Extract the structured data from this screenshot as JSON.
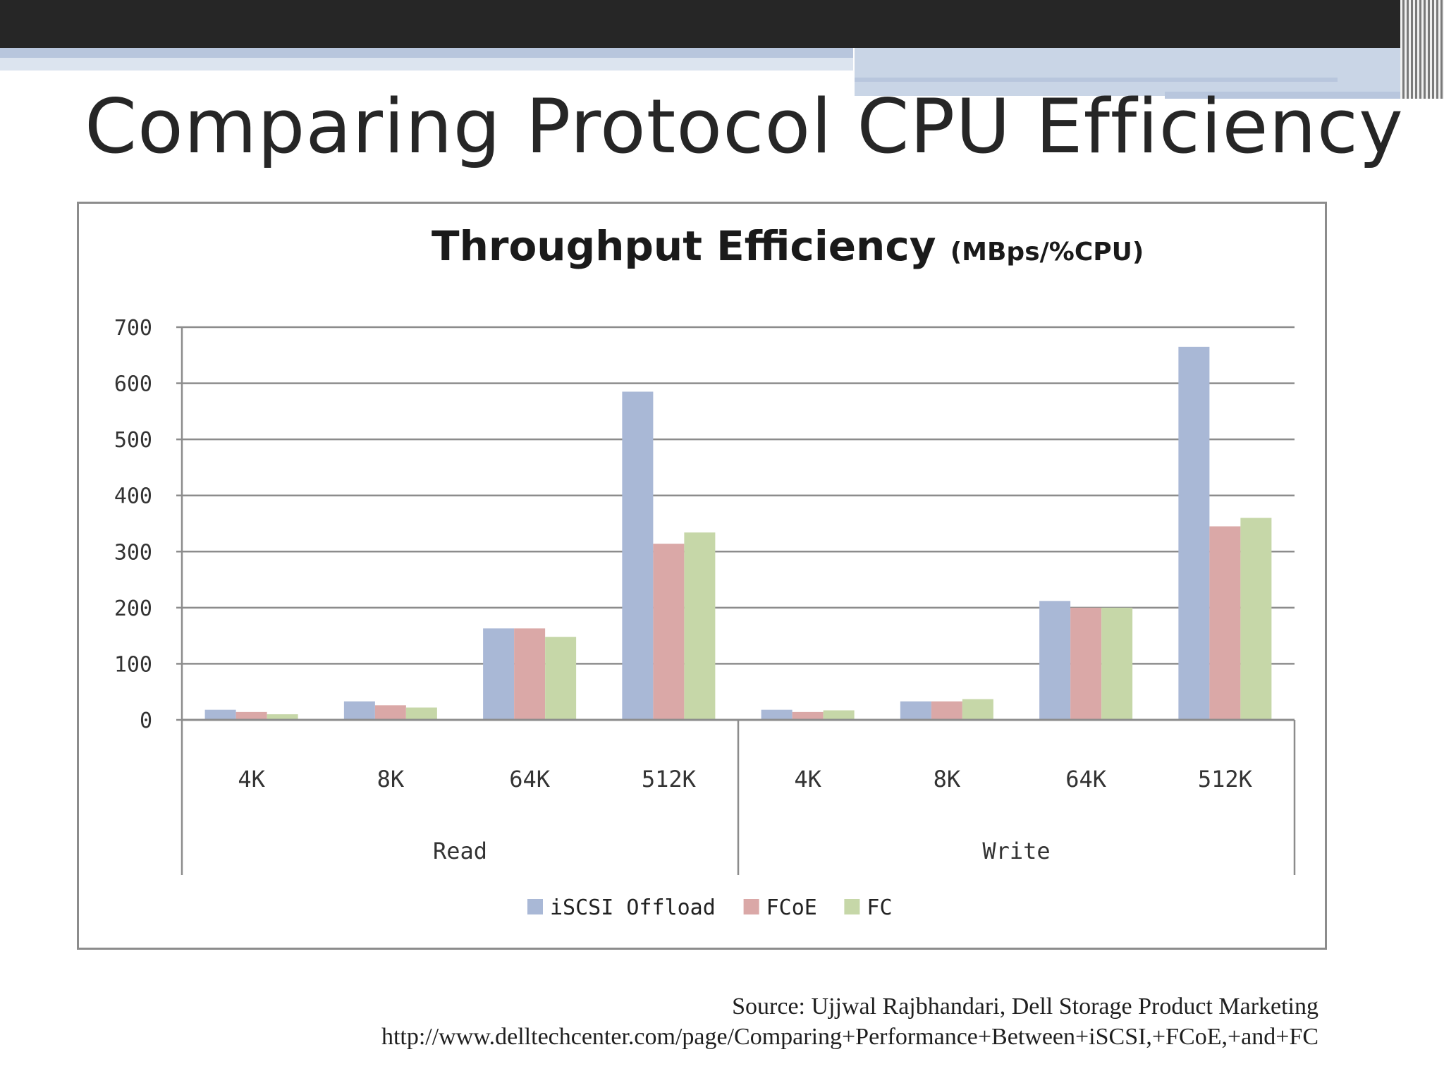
{
  "slide": {
    "title": "Comparing Protocol CPU Efficiency",
    "source_line1": "Source: Ujjwal Rajbhandari, Dell Storage Product Marketing",
    "source_line2": "http://www.delltechcenter.com/page/Comparing+Performance+Between+iSCSI,+FCoE,+and+FC"
  },
  "colors": {
    "top_bar": "#262626",
    "accent_stripe": "#b8c6dd",
    "grid": "#8c8c8c",
    "iscsi": "#a9b8d6",
    "fcoe": "#daa8a7",
    "fc": "#c6d7a8"
  },
  "chart_data": {
    "type": "bar",
    "title": "Throughput Efficiency",
    "title_suffix": "(MBps/%CPU)",
    "ylim": [
      0,
      700
    ],
    "yticks": [
      "0",
      "100",
      "200",
      "300",
      "400",
      "500",
      "600",
      "700"
    ],
    "categories": [
      "4K",
      "8K",
      "64K",
      "512K",
      "4K",
      "8K",
      "64K",
      "512K"
    ],
    "groups": [
      {
        "label": "Read",
        "categories": [
          "4K",
          "8K",
          "64K",
          "512K"
        ]
      },
      {
        "label": "Write",
        "categories": [
          "4K",
          "8K",
          "64K",
          "512K"
        ]
      }
    ],
    "series": [
      {
        "name": "iSCSI Offload",
        "color": "#a9b8d6",
        "values": [
          18,
          33,
          163,
          585,
          18,
          33,
          212,
          665
        ]
      },
      {
        "name": "FCoE",
        "color": "#daa8a7",
        "values": [
          14,
          26,
          163,
          314,
          14,
          33,
          200,
          345
        ]
      },
      {
        "name": "FC",
        "color": "#c6d7a8",
        "values": [
          10,
          22,
          148,
          334,
          17,
          37,
          200,
          360
        ]
      }
    ],
    "grid": true,
    "legend_position": "bottom"
  }
}
